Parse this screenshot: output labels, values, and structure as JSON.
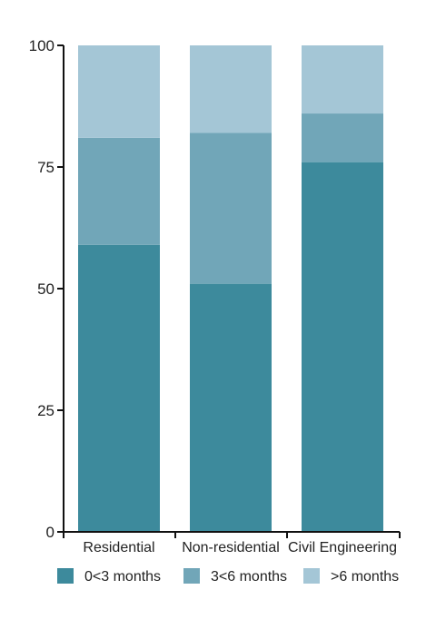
{
  "chart_data": {
    "type": "bar",
    "stacked": true,
    "categories": [
      "Residential",
      "Non-residential",
      "Civil Engineering"
    ],
    "series": [
      {
        "name": "0<3 months",
        "color": "#3d8a9c",
        "values": [
          59,
          51,
          76
        ]
      },
      {
        "name": "3<6 months",
        "color": "#71a6b8",
        "values": [
          22,
          31,
          10
        ]
      },
      {
        "name": ">6 months",
        "color": "#a4c6d6",
        "values": [
          19,
          18,
          14
        ]
      }
    ],
    "title": "",
    "xlabel": "",
    "ylabel": "",
    "ylim": [
      0,
      100
    ],
    "yticks": [
      "0",
      "25",
      "50",
      "75",
      "100"
    ],
    "grid": false,
    "legend": "bottom"
  }
}
